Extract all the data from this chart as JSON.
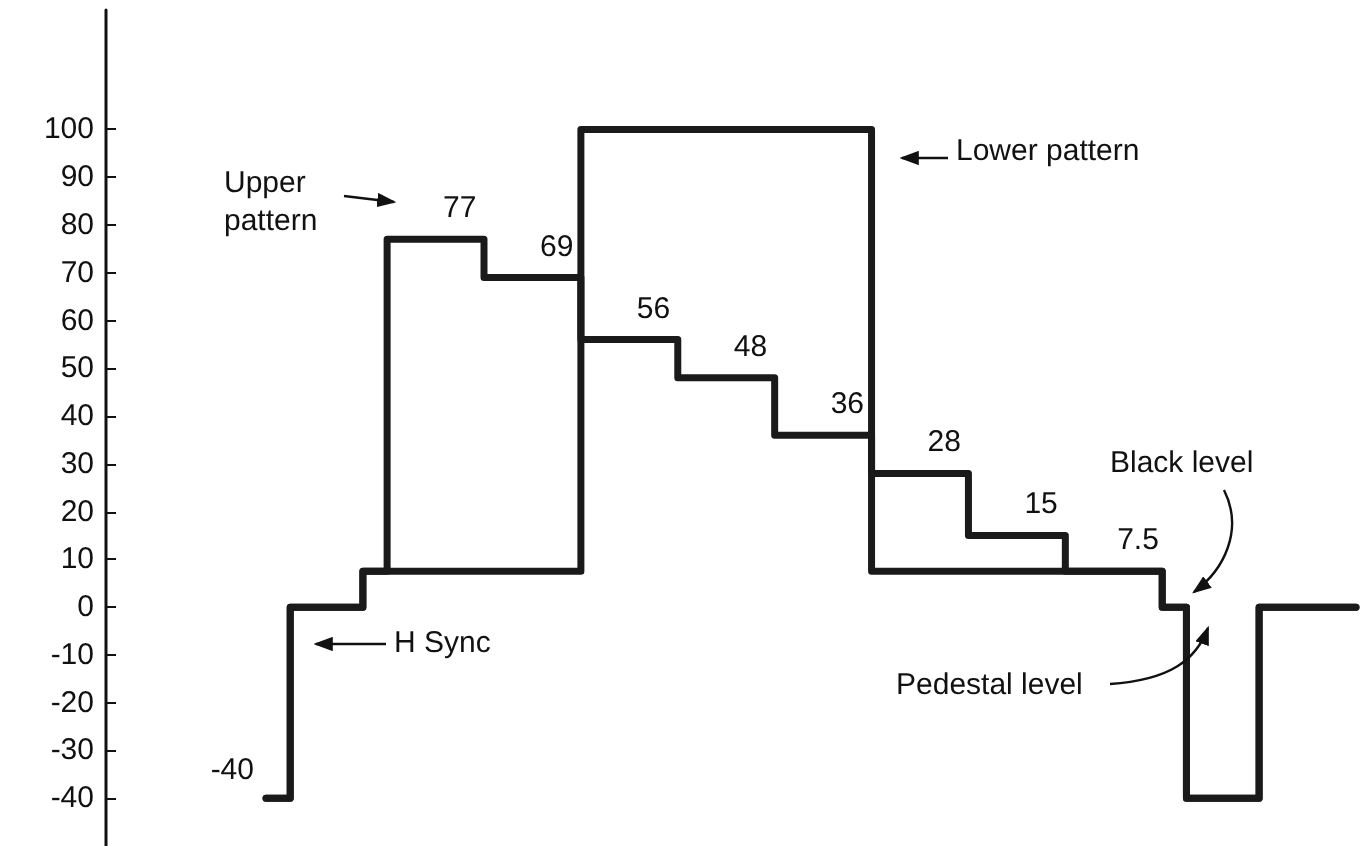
{
  "chart_data": {
    "type": "step",
    "categories": [
      null,
      null,
      null,
      null,
      null,
      null,
      null,
      null,
      null,
      null,
      null,
      null,
      null,
      null,
      null,
      null,
      null,
      null,
      null,
      null,
      null,
      null,
      null,
      null,
      null,
      null,
      null,
      null,
      null,
      null,
      null,
      null,
      null,
      null,
      null,
      null,
      null,
      null,
      null,
      null,
      null,
      null,
      null,
      null,
      null,
      null
    ],
    "series": [
      {
        "name": "Upper pattern",
        "color": "#1a1a1a",
        "values": [
          -40,
          -40,
          0,
          0,
          0,
          7.5,
          77,
          77,
          77,
          77,
          69,
          69,
          69,
          69,
          56,
          56,
          56,
          56,
          48,
          48,
          48,
          48,
          36,
          36,
          36,
          36,
          28,
          28,
          28,
          28,
          15,
          15,
          15,
          15,
          7.5,
          7.5,
          7.5,
          7.5,
          0,
          -40,
          -40,
          -40,
          0,
          0,
          0,
          0
        ],
        "value_labels": [
          "-40",
          null,
          null,
          null,
          null,
          null,
          null,
          null,
          "77",
          null,
          null,
          null,
          "69",
          null,
          null,
          null,
          "56",
          null,
          null,
          null,
          "48",
          null,
          null,
          null,
          "36",
          null,
          null,
          null,
          "28",
          null,
          null,
          null,
          "15",
          null,
          null,
          null,
          "7.5",
          null,
          null,
          null,
          null,
          null,
          null,
          null,
          null,
          null
        ]
      },
      {
        "name": "Lower pattern",
        "color": "#1a1a1a",
        "values": [
          -40,
          -40,
          0,
          0,
          0,
          7.5,
          7.5,
          7.5,
          7.5,
          7.5,
          7.5,
          7.5,
          7.5,
          7.5,
          100,
          100,
          100,
          100,
          100,
          100,
          100,
          100,
          100,
          100,
          100,
          100,
          7.5,
          7.5,
          7.5,
          7.5,
          7.5,
          7.5,
          7.5,
          7.5,
          7.5,
          7.5,
          7.5,
          7.5,
          0,
          -40,
          -40,
          -40,
          0,
          0,
          0,
          0
        ]
      }
    ],
    "ylim": [
      -50,
      125
    ],
    "yticks": [
      -40,
      -30,
      -20,
      -10,
      0,
      10,
      20,
      30,
      40,
      50,
      60,
      70,
      80,
      90,
      100
    ],
    "tick_labels": "y",
    "grid": false,
    "marker": "none",
    "line_style": "solid",
    "annotations": [
      "H Sync",
      "Black level",
      "Pedestal level"
    ]
  }
}
